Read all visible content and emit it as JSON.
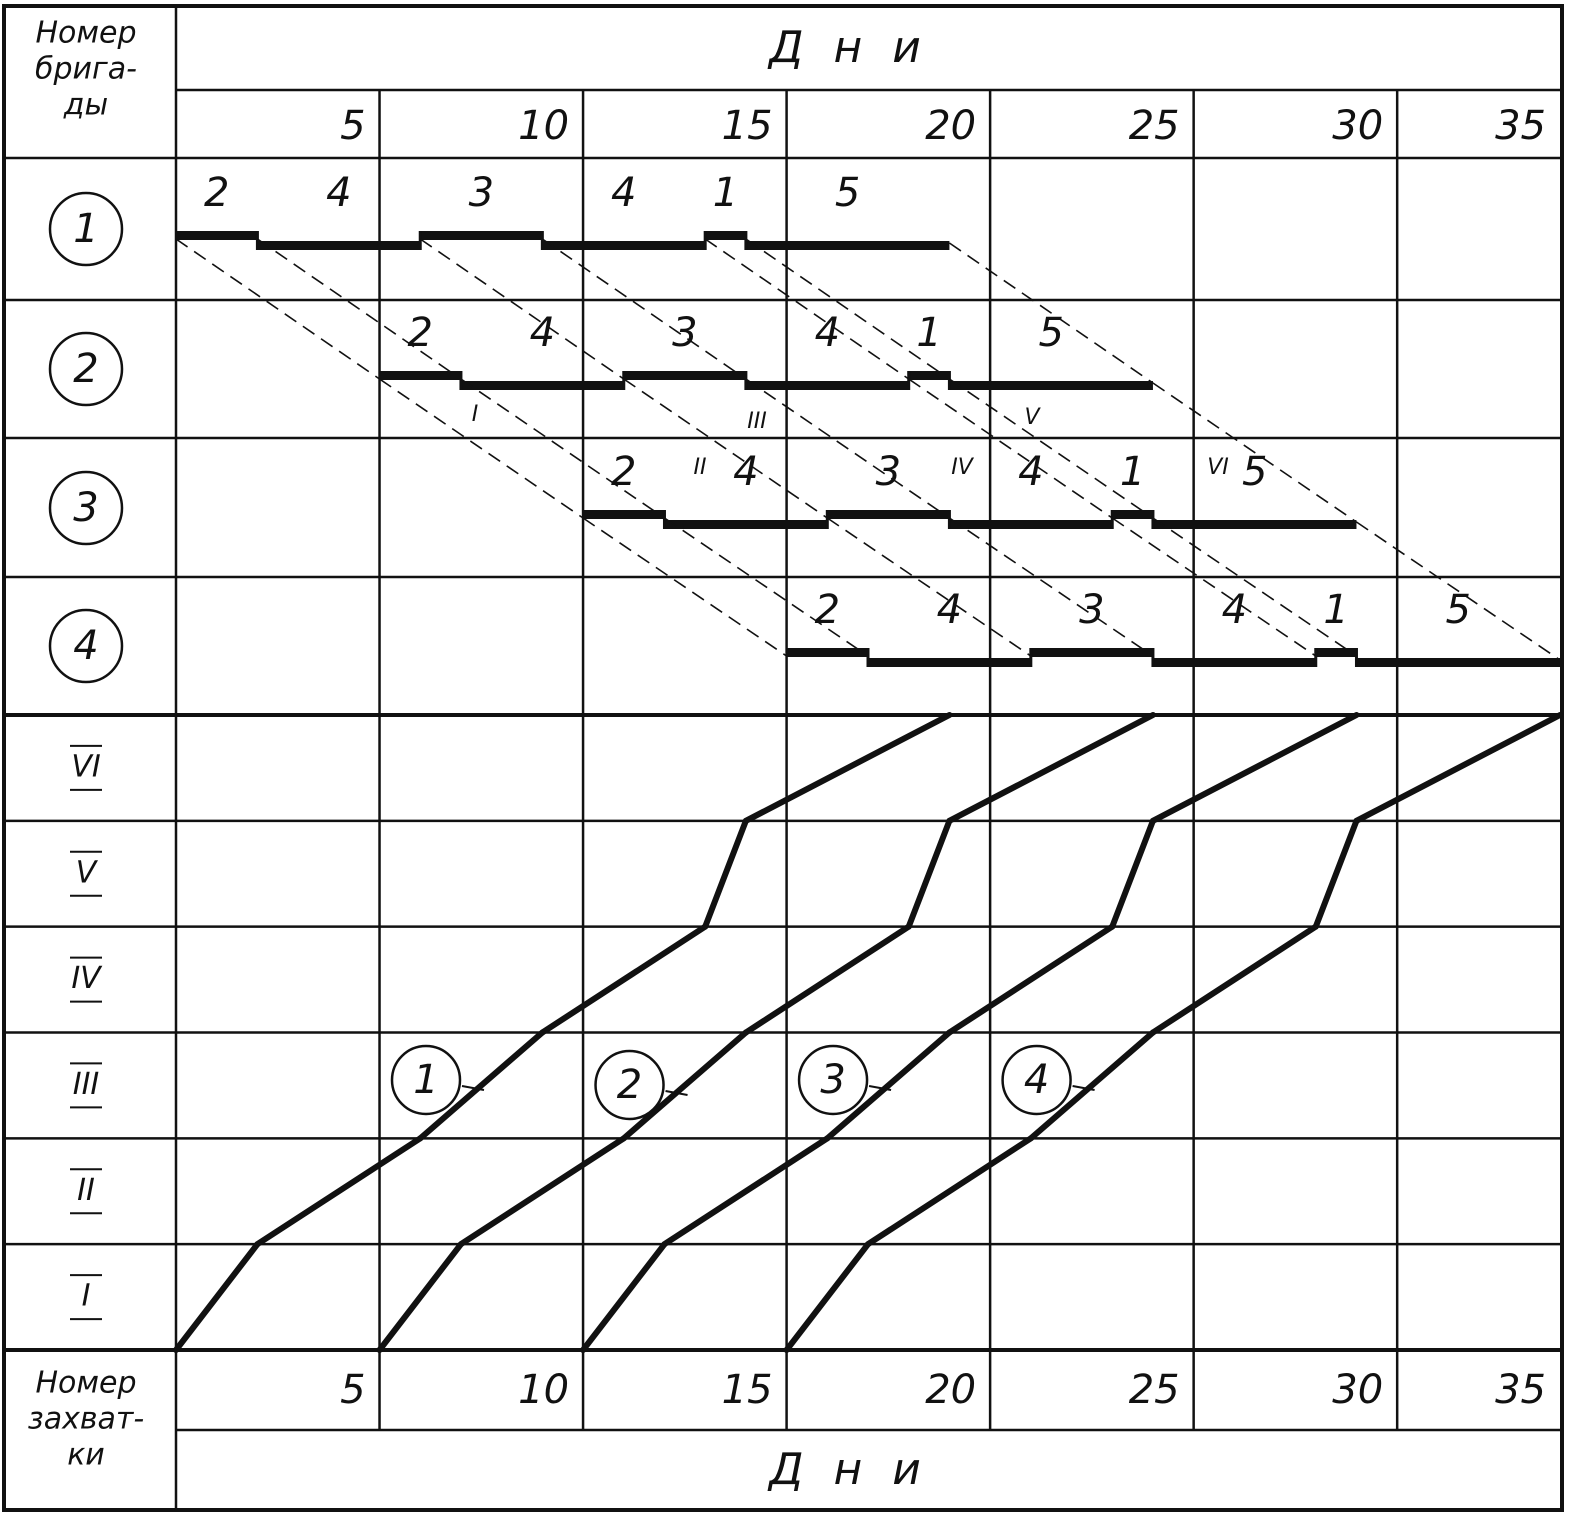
{
  "chart_data": {
    "type": "cyclogram",
    "x_label": "Дни",
    "brigade_axis_label": [
      "Номер",
      "брига-",
      "ды"
    ],
    "zone_axis_label": [
      "Номер",
      "захват-",
      "ки"
    ],
    "xlim": [
      0,
      34
    ],
    "xticks": [
      5,
      10,
      15,
      20,
      25,
      30,
      35
    ],
    "zones": [
      "I",
      "II",
      "III",
      "IV",
      "V",
      "VI"
    ],
    "brigades": [
      {
        "label": "1",
        "tasks": [
          {
            "work": "2",
            "start": 0,
            "end": 2
          },
          {
            "work": "4",
            "start": 2,
            "end": 6
          },
          {
            "work": "3",
            "start": 6,
            "end": 9
          },
          {
            "work": "4",
            "start": 9,
            "end": 13
          },
          {
            "work": "1",
            "start": 13,
            "end": 14
          },
          {
            "work": "5",
            "start": 14,
            "end": 19
          }
        ]
      },
      {
        "label": "2",
        "tasks": [
          {
            "work": "2",
            "start": 5,
            "end": 7
          },
          {
            "work": "4",
            "start": 7,
            "end": 11
          },
          {
            "work": "3",
            "start": 11,
            "end": 14
          },
          {
            "work": "4",
            "start": 14,
            "end": 18
          },
          {
            "work": "1",
            "start": 18,
            "end": 19
          },
          {
            "work": "5",
            "start": 19,
            "end": 24
          }
        ]
      },
      {
        "label": "3",
        "tasks": [
          {
            "work": "2",
            "start": 10,
            "end": 12
          },
          {
            "work": "4",
            "start": 12,
            "end": 16
          },
          {
            "work": "3",
            "start": 16,
            "end": 19
          },
          {
            "work": "4",
            "start": 19,
            "end": 23
          },
          {
            "work": "1",
            "start": 23,
            "end": 24
          },
          {
            "work": "5",
            "start": 24,
            "end": 29
          }
        ]
      },
      {
        "label": "4",
        "tasks": [
          {
            "work": "2",
            "start": 15,
            "end": 17
          },
          {
            "work": "4",
            "start": 17,
            "end": 21
          },
          {
            "work": "3",
            "start": 21,
            "end": 24
          },
          {
            "work": "4",
            "start": 24,
            "end": 28
          },
          {
            "work": "1",
            "start": 28,
            "end": 29
          },
          {
            "work": "5",
            "start": 29,
            "end": 34
          }
        ]
      }
    ]
  }
}
